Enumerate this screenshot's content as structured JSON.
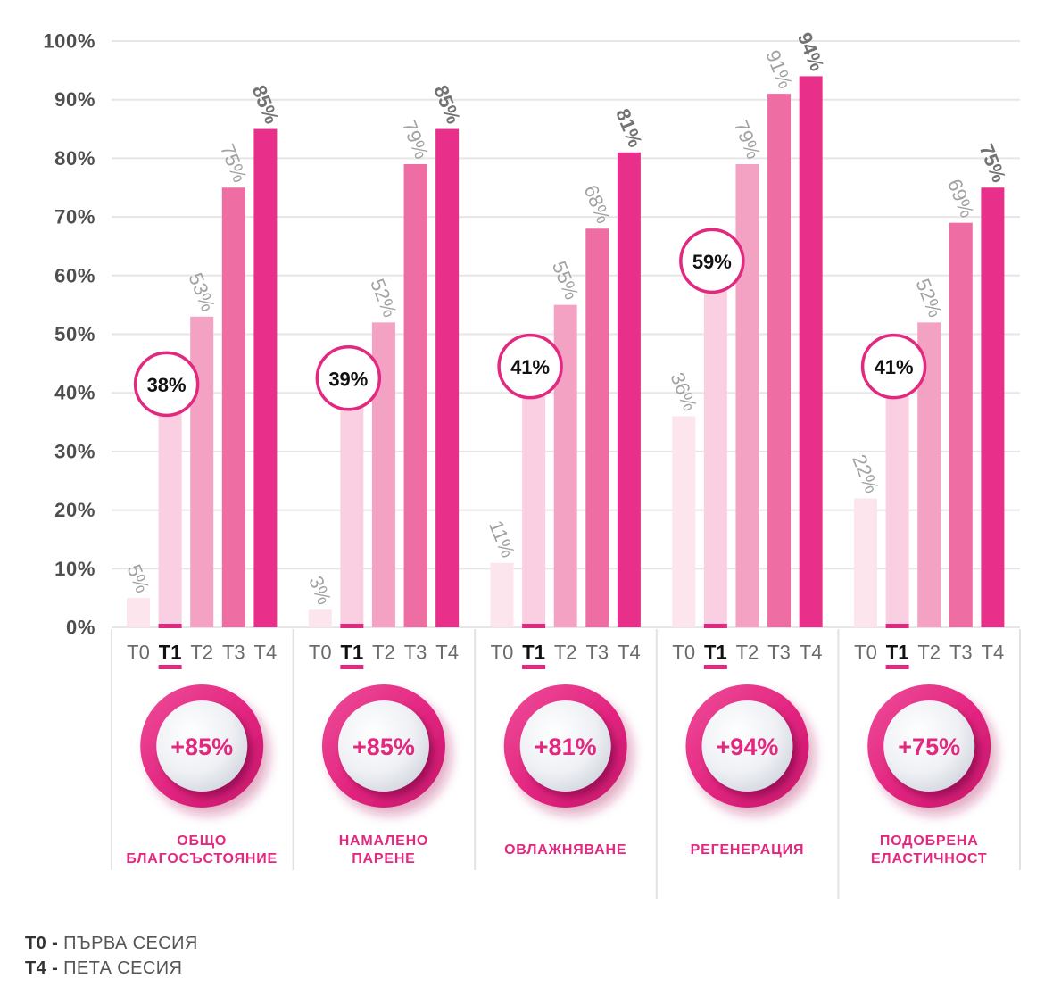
{
  "chart_data": {
    "type": "bar",
    "ylim": [
      0,
      100
    ],
    "grid": true,
    "y_tick_labels": [
      "0%",
      "10%",
      "20%",
      "30%",
      "40%",
      "50%",
      "60%",
      "70%",
      "80%",
      "90%",
      "100%"
    ],
    "value_suffix": "%",
    "categories": [
      "ОБЩО\nБЛАГОСЪСТОЯНИЕ",
      "НАМАЛЕНО\nПАРЕНЕ",
      "ОВЛАЖНЯВАНЕ",
      "РЕГЕНЕРАЦИЯ",
      "ПОДОБРЕНА\nЕЛАСТИЧНОСТ"
    ],
    "series": [
      {
        "name": "T0",
        "color": "#fde5ee",
        "values": [
          5,
          3,
          11,
          36,
          22
        ]
      },
      {
        "name": "T1",
        "color": "#f9cfe1",
        "values": [
          38,
          39,
          41,
          59,
          41
        ]
      },
      {
        "name": "T2",
        "color": "#f4a2c4",
        "values": [
          53,
          52,
          55,
          79,
          52
        ]
      },
      {
        "name": "T3",
        "color": "#ee6ea4",
        "values": [
          75,
          79,
          68,
          91,
          69
        ]
      },
      {
        "name": "T4",
        "color": "#e8308a",
        "values": [
          85,
          85,
          81,
          94,
          75
        ]
      }
    ],
    "highlight_series_index": 1,
    "badges": [
      "+85%",
      "+85%",
      "+81%",
      "+94%",
      "+75%"
    ],
    "accent_color": "#e2287f"
  },
  "legend": [
    {
      "key": "T0 -",
      "text": "ПЪРВА СЕСИЯ"
    },
    {
      "key": "T4 -",
      "text": "ПЕТА СЕСИЯ"
    }
  ]
}
